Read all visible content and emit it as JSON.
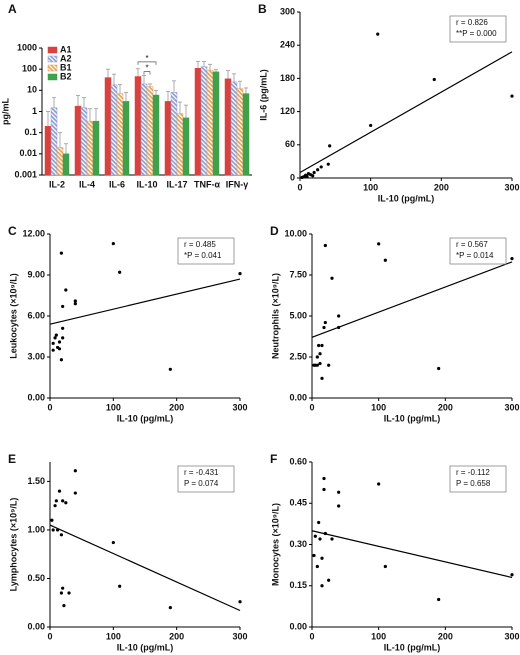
{
  "chart_data": [
    {
      "type": "bar",
      "panel_label": "A",
      "y_label": "pg/mL",
      "log_scale": true,
      "legend": "upper left",
      "categories": [
        "IL-2",
        "IL-4",
        "IL-6",
        "IL-10",
        "IL-17",
        "TNF-α",
        "IFN-γ"
      ],
      "series": [
        {
          "name": "A1",
          "color": "#d9413f",
          "hatch": false,
          "values": [
            0.2,
            1.8,
            40,
            45,
            3,
            110,
            35
          ],
          "errors": [
            0.8,
            4,
            60,
            60,
            6,
            120,
            50
          ]
        },
        {
          "name": "A2",
          "color": "#8f9ccf",
          "hatch": true,
          "values": [
            1.5,
            1.5,
            18,
            20,
            8,
            130,
            25
          ],
          "errors": [
            3,
            3,
            40,
            30,
            20,
            100,
            35
          ]
        },
        {
          "name": "B1",
          "color": "#e8a055",
          "hatch": true,
          "values": [
            0.02,
            0.35,
            7,
            15,
            0.8,
            90,
            12
          ],
          "errors": [
            0.08,
            1,
            12,
            5,
            2,
            80,
            15
          ]
        },
        {
          "name": "B2",
          "color": "#3fa14b",
          "hatch": false,
          "values": [
            0.01,
            0.35,
            3,
            6,
            0.5,
            75,
            7
          ],
          "errors": [
            0.02,
            1,
            5,
            4,
            1.5,
            20,
            6
          ]
        }
      ],
      "annotations": [
        "*",
        "*"
      ],
      "ylim": [
        0.001,
        1000
      ],
      "yticks": [
        0.001,
        0.01,
        0.1,
        1,
        10,
        100,
        1000
      ]
    },
    {
      "type": "scatter",
      "panel_label": "B",
      "x_label": "IL-10 (pg/mL)",
      "y_label": "IL-6 (pg/mL)",
      "stats": [
        "r = 0.826",
        "**P = 0.000"
      ],
      "x": [
        3,
        5,
        6,
        8,
        10,
        12,
        15,
        18,
        20,
        25,
        30,
        40,
        42,
        100,
        110,
        190,
        300
      ],
      "values": [
        1,
        2,
        2,
        5,
        3,
        8,
        6,
        4,
        10,
        15,
        20,
        25,
        58,
        95,
        260,
        178,
        148
      ],
      "fit": {
        "x": [
          0,
          300
        ],
        "values": [
          10,
          228
        ]
      },
      "xlim": [
        0,
        300
      ],
      "xticks": [
        0,
        100,
        200,
        300
      ],
      "ylim": [
        0,
        300
      ],
      "yticks": [
        0,
        60,
        120,
        180,
        240,
        300
      ]
    },
    {
      "type": "scatter",
      "panel_label": "C",
      "x_label": "IL-10 (pg/mL)",
      "y_label": "Leukocytes (×10⁹/L)",
      "stats": [
        "r = 0.485",
        "*P = 0.041"
      ],
      "x": [
        5,
        5,
        8,
        10,
        12,
        15,
        15,
        18,
        18,
        20,
        20,
        20,
        25,
        40,
        40,
        100,
        110,
        190,
        300
      ],
      "values": [
        3.5,
        4.0,
        4.4,
        4.6,
        3.7,
        4.1,
        3.6,
        2.8,
        10.6,
        6.7,
        5.1,
        4.4,
        7.9,
        6.9,
        7.1,
        11.3,
        9.2,
        2.1,
        9.1
      ],
      "fit": {
        "x": [
          0,
          300
        ],
        "values": [
          5.4,
          8.7
        ]
      },
      "xlim": [
        0,
        300
      ],
      "xticks": [
        0,
        100,
        200,
        300
      ],
      "ylim": [
        0,
        12
      ],
      "yticks": [
        {
          "value": 0,
          "label": "0.00"
        },
        {
          "value": 3,
          "label": "3.00"
        },
        {
          "value": 6,
          "label": "6.00"
        },
        {
          "value": 9,
          "label": "9.00"
        },
        {
          "value": 12,
          "label": "12.00"
        }
      ]
    },
    {
      "type": "scatter",
      "panel_label": "D",
      "x_label": "IL-10 (pg/mL)",
      "y_label": "Neutrophils (×10⁹/L)",
      "stats": [
        "r = 0.567",
        "*P = 0.014"
      ],
      "x": [
        3,
        5,
        8,
        8,
        10,
        12,
        12,
        15,
        15,
        18,
        20,
        20,
        25,
        30,
        40,
        40,
        100,
        110,
        190,
        300
      ],
      "values": [
        2,
        2,
        2.5,
        2,
        3.2,
        2.7,
        2.1,
        3.2,
        1.2,
        4.3,
        9.3,
        4.6,
        2,
        7.3,
        5,
        4.3,
        9.4,
        8.4,
        1.8,
        8.5
      ],
      "fit": {
        "x": [
          0,
          300
        ],
        "values": [
          3.7,
          8.3
        ]
      },
      "xlim": [
        0,
        300
      ],
      "xticks": [
        0,
        100,
        200,
        300
      ],
      "ylim": [
        0,
        10
      ],
      "yticks": [
        {
          "value": 0,
          "label": "0.00"
        },
        {
          "value": 2.5,
          "label": "2.50"
        },
        {
          "value": 5,
          "label": "5.00"
        },
        {
          "value": 7.5,
          "label": "7.50"
        },
        {
          "value": 10,
          "label": "10.00"
        }
      ]
    },
    {
      "type": "scatter",
      "panel_label": "E",
      "x_label": "IL-10 (pg/mL)",
      "y_label": "Lymphocytes (×10⁹/L)",
      "stats": [
        "r = -0.431",
        "P = 0.074"
      ],
      "x": [
        3,
        5,
        8,
        10,
        12,
        15,
        18,
        18,
        20,
        20,
        22,
        25,
        30,
        40,
        40,
        100,
        110,
        190,
        300
      ],
      "values": [
        1.1,
        1.0,
        1.25,
        1.3,
        1.0,
        1.4,
        0.95,
        0.35,
        0.4,
        1.3,
        0.22,
        1.28,
        0.35,
        1.61,
        1.38,
        0.87,
        0.42,
        0.2,
        0.26
      ],
      "fit": {
        "x": [
          0,
          300
        ],
        "values": [
          1.05,
          0.17
        ]
      },
      "xlim": [
        0,
        300
      ],
      "xticks": [
        0,
        100,
        200,
        300
      ],
      "ylim": [
        0,
        1.7
      ],
      "yticks": [
        {
          "value": 0,
          "label": "0.00"
        },
        {
          "value": 0.5,
          "label": "0.50"
        },
        {
          "value": 1,
          "label": "1.00"
        },
        {
          "value": 1.5,
          "label": "1.50"
        }
      ]
    },
    {
      "type": "scatter",
      "panel_label": "F",
      "x_label": "IL-10 (pg/mL)",
      "y_label": "Monocytes (×10⁹/L)",
      "stats": [
        "r = -0.112",
        "P = 0.658"
      ],
      "x": [
        3,
        5,
        8,
        10,
        12,
        15,
        15,
        18,
        18,
        20,
        25,
        30,
        40,
        40,
        100,
        110,
        190,
        300
      ],
      "values": [
        0.26,
        0.33,
        0.22,
        0.38,
        0.32,
        0.15,
        0.25,
        0.54,
        0.5,
        0.34,
        0.17,
        0.32,
        0.49,
        0.44,
        0.52,
        0.22,
        0.1,
        0.19
      ],
      "fit": {
        "x": [
          0,
          300
        ],
        "values": [
          0.35,
          0.18
        ]
      },
      "xlim": [
        0,
        300
      ],
      "xticks": [
        0,
        100,
        200,
        300
      ],
      "ylim": [
        0,
        0.6
      ],
      "yticks": [
        {
          "value": 0,
          "label": "0.00"
        },
        {
          "value": 0.15,
          "label": "0.15"
        },
        {
          "value": 0.3,
          "label": "0.30"
        },
        {
          "value": 0.45,
          "label": "0.45"
        },
        {
          "value": 0.6,
          "label": "0.60"
        }
      ]
    }
  ]
}
